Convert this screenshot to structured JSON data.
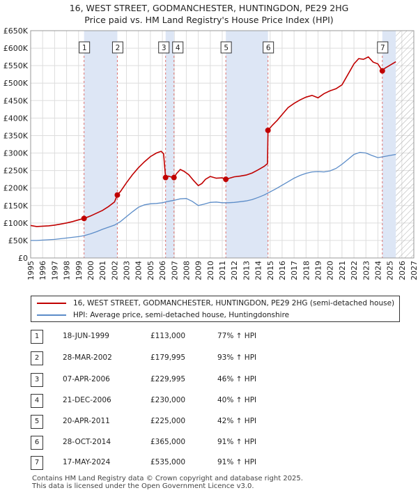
{
  "header": {
    "title_line1": "16, WEST STREET, GODMANCHESTER, HUNTINGDON, PE29 2HG",
    "title_line2": "Price paid vs. HM Land Registry's House Price Index (HPI)"
  },
  "colors": {
    "property": "#c00000",
    "hpi": "#5b8cc8",
    "shade": "#dde6f5",
    "grid": "#dddddd",
    "hatch": "#aaaaaa"
  },
  "chart_data": {
    "type": "line",
    "title": "Price paid vs. HM Land Registry's House Price Index (HPI)",
    "xlim": [
      1995,
      2027
    ],
    "ylim": [
      0,
      650000
    ],
    "y_ticks": [
      0,
      50000,
      100000,
      150000,
      200000,
      250000,
      300000,
      350000,
      400000,
      450000,
      500000,
      550000,
      600000,
      650000
    ],
    "y_tick_labels": [
      "£0",
      "£50K",
      "£100K",
      "£150K",
      "£200K",
      "£250K",
      "£300K",
      "£350K",
      "£400K",
      "£450K",
      "£500K",
      "£550K",
      "£600K",
      "£650K"
    ],
    "x_ticks": [
      1995,
      1996,
      1997,
      1998,
      1999,
      2000,
      2001,
      2002,
      2003,
      2004,
      2005,
      2006,
      2007,
      2008,
      2009,
      2010,
      2011,
      2012,
      2013,
      2014,
      2015,
      2016,
      2017,
      2018,
      2019,
      2020,
      2021,
      2022,
      2023,
      2024,
      2025,
      2026,
      2027
    ],
    "x_tick_labels": [
      "1995",
      "1996",
      "1997",
      "1998",
      "1999",
      "2000",
      "2001",
      "2002",
      "2003",
      "2004",
      "2005",
      "2006",
      "2007",
      "2008",
      "2009",
      "2010",
      "2011",
      "2012",
      "2013",
      "2014",
      "2015",
      "2016",
      "2017",
      "2018",
      "2019",
      "2020",
      "2021",
      "2022",
      "2023",
      "2024",
      "2025",
      "2026",
      "2027"
    ],
    "shaded_periods": [
      [
        1999.46,
        2002.24
      ],
      [
        2006.27,
        2006.97
      ],
      [
        2011.3,
        2014.82
      ],
      [
        2024.37,
        2025.5
      ]
    ],
    "hatched_from": 2025.5,
    "series": [
      {
        "name": "16, WEST STREET, GODMANCHESTER, HUNTINGDON, PE29 2HG (semi-detached house)",
        "x": [
          1995.0,
          1995.5,
          1996.0,
          1996.5,
          1997.0,
          1997.5,
          1998.0,
          1998.5,
          1999.0,
          1999.46,
          2000.0,
          2000.5,
          2001.0,
          2001.5,
          2002.0,
          2002.24,
          2002.5,
          2003.0,
          2003.5,
          2004.0,
          2004.5,
          2005.0,
          2005.5,
          2005.9,
          2006.1,
          2006.27,
          2006.5,
          2006.8,
          2006.97,
          2007.2,
          2007.5,
          2007.8,
          2008.2,
          2008.6,
          2009.0,
          2009.3,
          2009.6,
          2010.0,
          2010.5,
          2011.0,
          2011.3,
          2011.7,
          2012.0,
          2012.5,
          2013.0,
          2013.5,
          2014.0,
          2014.5,
          2014.78,
          2014.82,
          2015.2,
          2015.6,
          2016.0,
          2016.5,
          2017.0,
          2017.5,
          2018.0,
          2018.5,
          2019.0,
          2019.5,
          2020.0,
          2020.5,
          2021.0,
          2021.5,
          2022.0,
          2022.4,
          2022.8,
          2023.2,
          2023.6,
          2024.0,
          2024.37,
          2024.6,
          2025.0,
          2025.3,
          2025.5
        ],
        "values": [
          93000,
          90000,
          91000,
          92000,
          94000,
          97000,
          100000,
          104000,
          109000,
          113000,
          120000,
          128000,
          136000,
          147000,
          160000,
          179995,
          190000,
          215000,
          238000,
          258000,
          275000,
          290000,
          300000,
          305000,
          298000,
          229995,
          234000,
          231000,
          230000,
          242000,
          253000,
          248000,
          238000,
          222000,
          207000,
          213000,
          225000,
          233000,
          228000,
          229000,
          225000,
          229000,
          232000,
          234000,
          237000,
          243000,
          252000,
          262000,
          270000,
          365000,
          380000,
          394000,
          410000,
          430000,
          442000,
          452000,
          460000,
          465000,
          458000,
          470000,
          478000,
          484000,
          495000,
          525000,
          555000,
          570000,
          568000,
          575000,
          560000,
          555000,
          535000,
          543000,
          551000,
          557000,
          561000
        ]
      },
      {
        "name": "HPI: Average price, semi-detached house, Huntingdonshire",
        "x": [
          1995.0,
          1995.5,
          1996.0,
          1996.5,
          1997.0,
          1997.5,
          1998.0,
          1998.5,
          1999.0,
          1999.5,
          2000.0,
          2000.5,
          2001.0,
          2001.5,
          2002.0,
          2002.5,
          2003.0,
          2003.5,
          2004.0,
          2004.5,
          2005.0,
          2005.5,
          2006.0,
          2006.5,
          2007.0,
          2007.5,
          2008.0,
          2008.5,
          2009.0,
          2009.5,
          2010.0,
          2010.5,
          2011.0,
          2011.5,
          2012.0,
          2012.5,
          2013.0,
          2013.5,
          2014.0,
          2014.5,
          2015.0,
          2015.5,
          2016.0,
          2016.5,
          2017.0,
          2017.5,
          2018.0,
          2018.5,
          2019.0,
          2019.5,
          2020.0,
          2020.5,
          2021.0,
          2021.5,
          2022.0,
          2022.5,
          2023.0,
          2023.5,
          2024.0,
          2024.5,
          2025.0,
          2025.5
        ],
        "values": [
          50000,
          50000,
          51000,
          52000,
          53000,
          55000,
          57000,
          59000,
          61000,
          64000,
          69000,
          75000,
          82000,
          88000,
          94000,
          104000,
          118000,
          132000,
          145000,
          152000,
          155000,
          156000,
          158000,
          162000,
          165000,
          169000,
          170000,
          162000,
          150000,
          154000,
          159000,
          160000,
          158000,
          158000,
          159000,
          161000,
          163000,
          167000,
          173000,
          180000,
          189000,
          198000,
          208000,
          218000,
          228000,
          236000,
          242000,
          246000,
          247000,
          246000,
          249000,
          256000,
          268000,
          282000,
          296000,
          302000,
          300000,
          293000,
          287000,
          290000,
          293000,
          296000
        ]
      }
    ],
    "markers": [
      {
        "label": "1",
        "x": 1999.46,
        "value": 113000
      },
      {
        "label": "2",
        "x": 2002.24,
        "value": 179995
      },
      {
        "label": "3",
        "x": 2006.27,
        "value": 229995
      },
      {
        "label": "4",
        "x": 2006.97,
        "value": 230000
      },
      {
        "label": "5",
        "x": 2011.3,
        "value": 225000
      },
      {
        "label": "6",
        "x": 2014.82,
        "value": 365000
      },
      {
        "label": "7",
        "x": 2024.37,
        "value": 535000
      }
    ]
  },
  "legend": {
    "property_label": "16, WEST STREET, GODMANCHESTER, HUNTINGDON, PE29 2HG (semi-detached house)",
    "hpi_label": "HPI: Average price, semi-detached house, Huntingdonshire"
  },
  "transactions": [
    {
      "num": "1",
      "date": "18-JUN-1999",
      "price": "£113,000",
      "hpi": "77% ↑ HPI"
    },
    {
      "num": "2",
      "date": "28-MAR-2002",
      "price": "£179,995",
      "hpi": "93% ↑ HPI"
    },
    {
      "num": "3",
      "date": "07-APR-2006",
      "price": "£229,995",
      "hpi": "46% ↑ HPI"
    },
    {
      "num": "4",
      "date": "21-DEC-2006",
      "price": "£230,000",
      "hpi": "40% ↑ HPI"
    },
    {
      "num": "5",
      "date": "20-APR-2011",
      "price": "£225,000",
      "hpi": "42% ↑ HPI"
    },
    {
      "num": "6",
      "date": "28-OCT-2014",
      "price": "£365,000",
      "hpi": "91% ↑ HPI"
    },
    {
      "num": "7",
      "date": "17-MAY-2024",
      "price": "£535,000",
      "hpi": "91% ↑ HPI"
    }
  ],
  "footer": {
    "line1": "Contains HM Land Registry data © Crown copyright and database right 2025.",
    "line2": "This data is licensed under the Open Government Licence v3.0."
  }
}
